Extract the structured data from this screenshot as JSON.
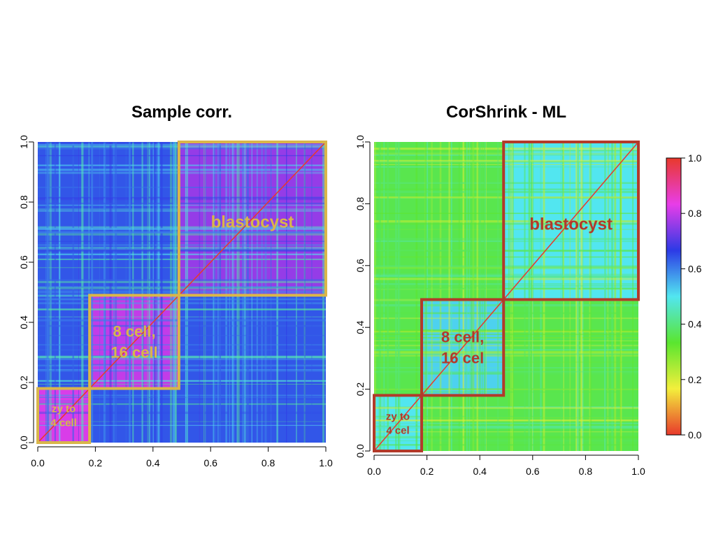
{
  "chart_data": [
    {
      "type": "heatmap",
      "title": "Sample corr.",
      "xlabel": "",
      "ylabel": "",
      "xlim": [
        0,
        1
      ],
      "ylim": [
        0,
        1
      ],
      "xticks": [
        "0.0",
        "0.2",
        "0.4",
        "0.6",
        "0.8",
        "1.0"
      ],
      "yticks": [
        "0.0",
        "0.2",
        "0.4",
        "0.6",
        "0.8",
        "1.0"
      ],
      "background_corr": 0.64,
      "diagonal_corr": 1.0,
      "blocks": [
        {
          "label": "zy to 4 cell",
          "lines": [
            "zy to",
            "4 cell"
          ],
          "range": [
            0.0,
            0.18
          ],
          "within_corr": 0.82
        },
        {
          "label": "8 cell, 16 cell",
          "lines": [
            "8 cell,",
            "16 cell"
          ],
          "range": [
            0.18,
            0.49
          ],
          "within_corr": 0.8
        },
        {
          "label": "blastocyst",
          "lines": [
            "blastocyst"
          ],
          "range": [
            0.49,
            1.0
          ],
          "within_corr": 0.76
        }
      ],
      "annotation_color": "#d9b64a",
      "grid": false,
      "legend": "none"
    },
    {
      "type": "heatmap",
      "title": "CorShrink - ML",
      "xlabel": "",
      "ylabel": "",
      "xlim": [
        0,
        1
      ],
      "ylim": [
        0,
        1
      ],
      "xticks": [
        "0.0",
        "0.2",
        "0.4",
        "0.6",
        "0.8",
        "1.0"
      ],
      "yticks": [
        "0.0",
        "0.2",
        "0.4",
        "0.6",
        "0.8",
        "1.0"
      ],
      "background_corr": 0.36,
      "diagonal_corr": 1.0,
      "blocks": [
        {
          "label": "zy to 4 cell",
          "lines": [
            "zy to",
            "4 cel"
          ],
          "range": [
            0.0,
            0.18
          ],
          "within_corr": 0.5
        },
        {
          "label": "8 cell, 16 cell",
          "lines": [
            "8 cell,",
            "16 cel"
          ],
          "range": [
            0.18,
            0.49
          ],
          "within_corr": 0.52
        },
        {
          "label": "blastocyst",
          "lines": [
            "blastocyst"
          ],
          "range": [
            0.49,
            1.0
          ],
          "within_corr": 0.5
        }
      ],
      "annotation_color": "#b23a2a",
      "grid": false,
      "legend": "right"
    }
  ],
  "colorbar": {
    "ticks": [
      "0.0",
      "0.2",
      "0.4",
      "0.6",
      "0.8",
      "1.0"
    ],
    "range": [
      0,
      1
    ],
    "colors": [
      "#e8392b",
      "#f3ef3c",
      "#5ae62f",
      "#52e6f0",
      "#2c3ae6",
      "#e83de8",
      "#e8392b"
    ]
  }
}
